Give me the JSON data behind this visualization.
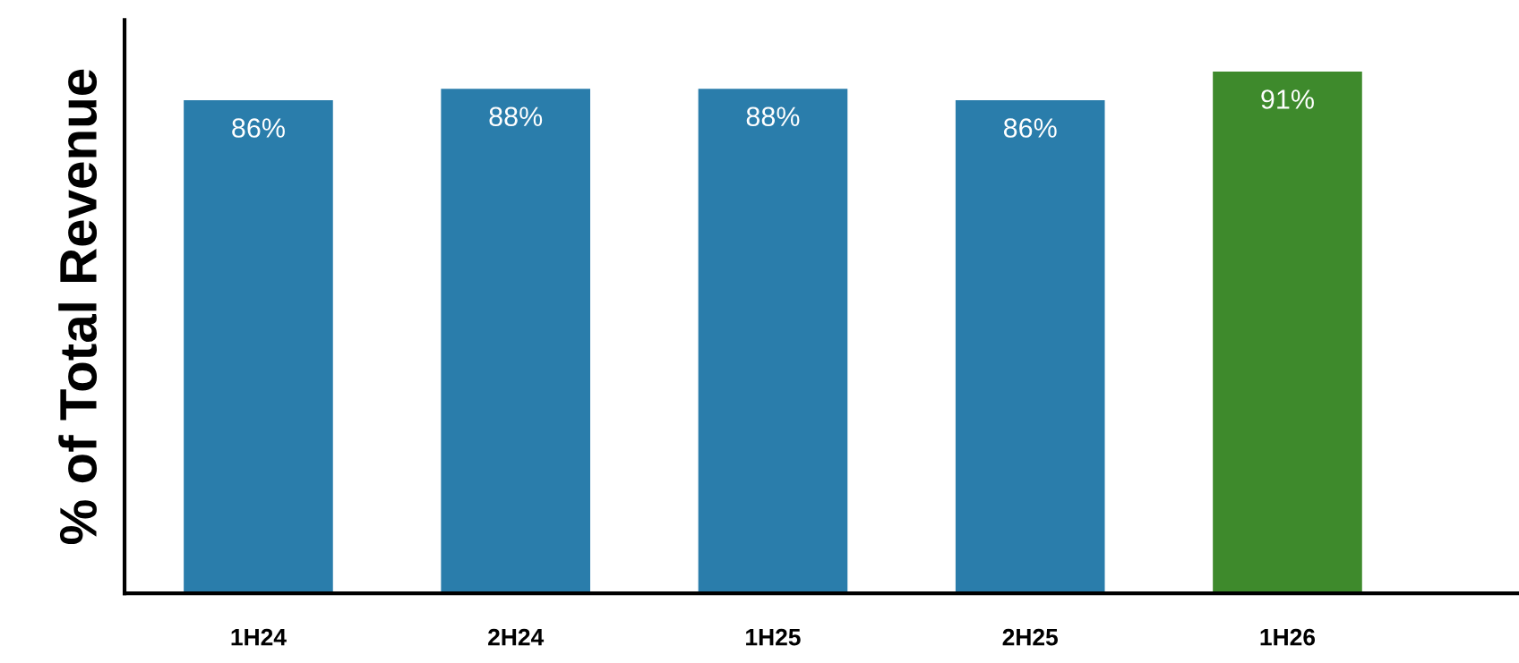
{
  "chart_data": {
    "type": "bar",
    "ylabel": "% of Total Revenue",
    "categories": [
      "1H24",
      "2H24",
      "1H25",
      "2H25",
      "1H26"
    ],
    "values": [
      86,
      88,
      88,
      86,
      91
    ],
    "colors": [
      "#2a7dab",
      "#2a7dab",
      "#2a7dab",
      "#2a7dab",
      "#3e8a2c"
    ],
    "value_labels": [
      "86%",
      "88%",
      "88%",
      "86%",
      "91%"
    ],
    "ylim": [
      0,
      100
    ],
    "tick_labels": "x",
    "grid": false,
    "legend": false
  }
}
